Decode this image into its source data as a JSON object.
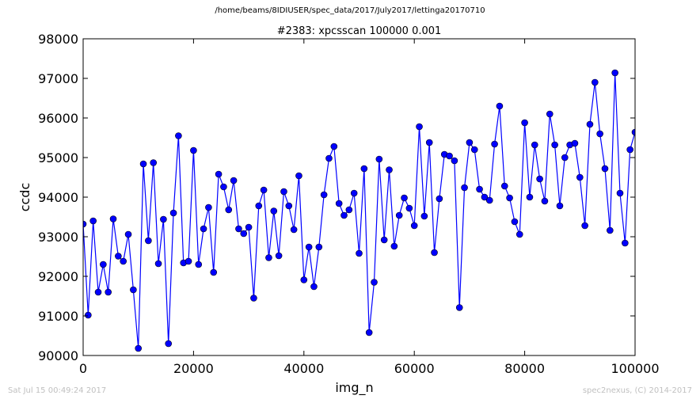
{
  "header": {
    "path": "/home/beams/8IDIUSER/spec_data/2017/July2017/lettinga20170710"
  },
  "footer": {
    "timestamp": "Sat Jul 15 00:49:24 2017",
    "credit": "spec2nexus, (C) 2014-2017"
  },
  "chart_data": {
    "type": "line",
    "title": "#2383: xpcsscan 100000 0.001",
    "xlabel": "img_n",
    "ylabel": "ccdc",
    "xlim": [
      0,
      100000
    ],
    "ylim": [
      90000,
      98000
    ],
    "xticks": [
      0,
      20000,
      40000,
      60000,
      80000,
      100000
    ],
    "yticks": [
      90000,
      91000,
      92000,
      93000,
      94000,
      95000,
      96000,
      97000,
      98000
    ],
    "grid": false,
    "line_color": "#0000ff",
    "marker_color": "#0000ff",
    "series": [
      {
        "x": [
          0,
          909,
          1818,
          2727,
          3636,
          4545,
          5455,
          6364,
          7273,
          8182,
          9091,
          10000,
          10909,
          11818,
          12727,
          13636,
          14545,
          15455,
          16364,
          17273,
          18182,
          19091,
          20000,
          20909,
          21818,
          22727,
          23636,
          24545,
          25455,
          26364,
          27273,
          28182,
          29091,
          30000,
          30909,
          31818,
          32727,
          33636,
          34545,
          35455,
          36364,
          37273,
          38182,
          39091,
          40000,
          40909,
          41818,
          42727,
          43636,
          44545,
          45455,
          46364,
          47273,
          48182,
          49091,
          50000,
          50909,
          51818,
          52727,
          53636,
          54545,
          55455,
          56364,
          57273,
          58182,
          59091,
          60000,
          60909,
          61818,
          62727,
          63636,
          64545,
          65455,
          66364,
          67273,
          68182,
          69091,
          70000,
          70909,
          71818,
          72727,
          73636,
          74545,
          75455,
          76364,
          77273,
          78182,
          79091,
          80000,
          80909,
          81818,
          82727,
          83636,
          84545,
          85455,
          86364,
          87273,
          88182,
          89091,
          90000,
          90909,
          91818,
          92727,
          93636,
          94545,
          95455,
          96364,
          97273,
          98182,
          99091,
          100000
        ],
        "y": [
          93320,
          91020,
          93400,
          91600,
          92300,
          91600,
          93450,
          92510,
          92380,
          93060,
          91660,
          90180,
          94840,
          92900,
          94870,
          92320,
          93440,
          90300,
          93600,
          95550,
          92340,
          92380,
          95180,
          92300,
          93200,
          93740,
          92100,
          94580,
          94260,
          93680,
          94420,
          93200,
          93080,
          93240,
          91450,
          93780,
          94180,
          92470,
          93650,
          92520,
          94140,
          93780,
          93180,
          94540,
          91910,
          92740,
          91740,
          92740,
          94060,
          94980,
          95280,
          93840,
          93540,
          93680,
          94100,
          92580,
          94720,
          90580,
          91850,
          94960,
          92920,
          94690,
          92760,
          93540,
          93980,
          93720,
          93280,
          95780,
          93520,
          95380,
          92600,
          93960,
          95080,
          95040,
          94920,
          91210,
          94240,
          95380,
          95200,
          94200,
          94000,
          93920,
          95340,
          96300,
          94280,
          93980,
          93380,
          93060,
          95880,
          94000,
          95320,
          94460,
          93900,
          96100,
          95320,
          93780,
          95000,
          95320,
          95360,
          94500,
          93280,
          95840,
          96900,
          95600,
          94720,
          93160,
          97140,
          94100,
          92840,
          95200,
          95640
        ]
      }
    ]
  }
}
